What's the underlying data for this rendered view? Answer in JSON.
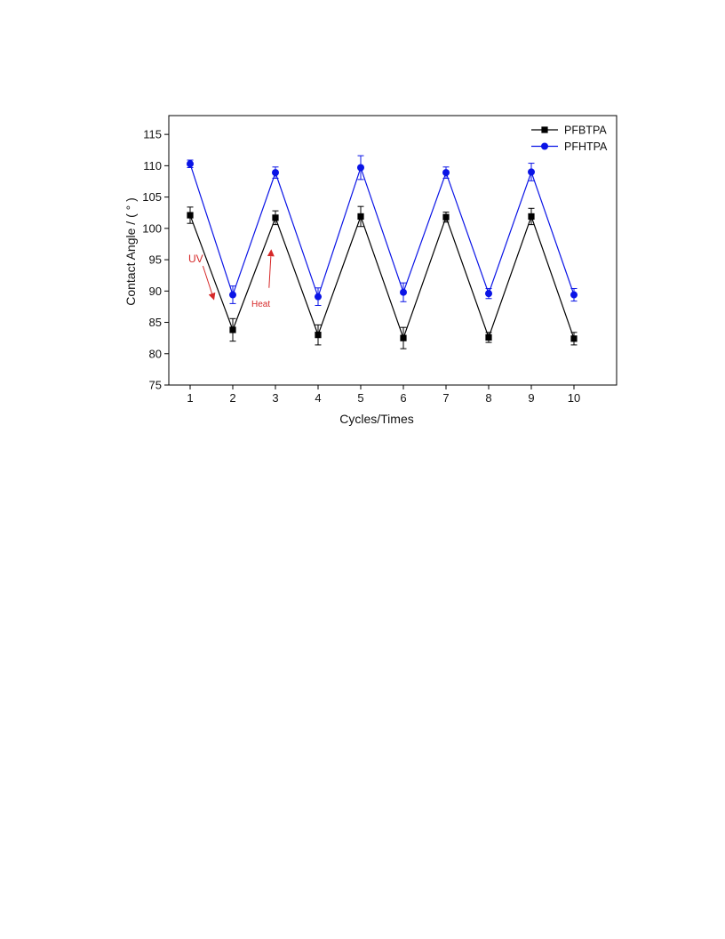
{
  "chart_data": {
    "type": "line",
    "title": "",
    "xlabel": "Cycles/Times",
    "ylabel": "Contact Angle / ( ° )",
    "xlim": [
      0.5,
      11
    ],
    "ylim": [
      75,
      118
    ],
    "x_ticks": [
      1,
      2,
      3,
      4,
      5,
      6,
      7,
      8,
      9,
      10
    ],
    "y_ticks": [
      75,
      80,
      85,
      90,
      95,
      100,
      105,
      110,
      115
    ],
    "grid": false,
    "legend_position": "top-right",
    "x": [
      1,
      2,
      3,
      4,
      5,
      6,
      7,
      8,
      9,
      10
    ],
    "series": [
      {
        "name": "PFBTPA",
        "color": "#000000",
        "marker": "square",
        "values": [
          102.1,
          83.8,
          101.7,
          83.0,
          101.9,
          82.5,
          101.8,
          82.6,
          101.9,
          82.4
        ],
        "errors": [
          1.3,
          1.8,
          1.1,
          1.6,
          1.6,
          1.7,
          0.8,
          0.8,
          1.3,
          1.0
        ]
      },
      {
        "name": "PFHTPA",
        "color": "#0a14e6",
        "marker": "circle",
        "values": [
          110.3,
          89.4,
          108.9,
          89.1,
          109.7,
          89.8,
          108.9,
          89.6,
          109.0,
          89.4
        ],
        "errors": [
          0.6,
          1.4,
          0.9,
          1.4,
          1.9,
          1.5,
          0.9,
          0.8,
          1.4,
          1.0
        ]
      }
    ],
    "annotations": [
      {
        "text": "UV",
        "color": "#d62828",
        "arrow_from": [
          1.3,
          94.0
        ],
        "arrow_to": [
          1.55,
          88.8
        ]
      },
      {
        "text": "Heat",
        "color": "#d62828",
        "arrow_from": [
          2.85,
          90.5
        ],
        "arrow_to": [
          2.9,
          96.4
        ]
      }
    ]
  }
}
